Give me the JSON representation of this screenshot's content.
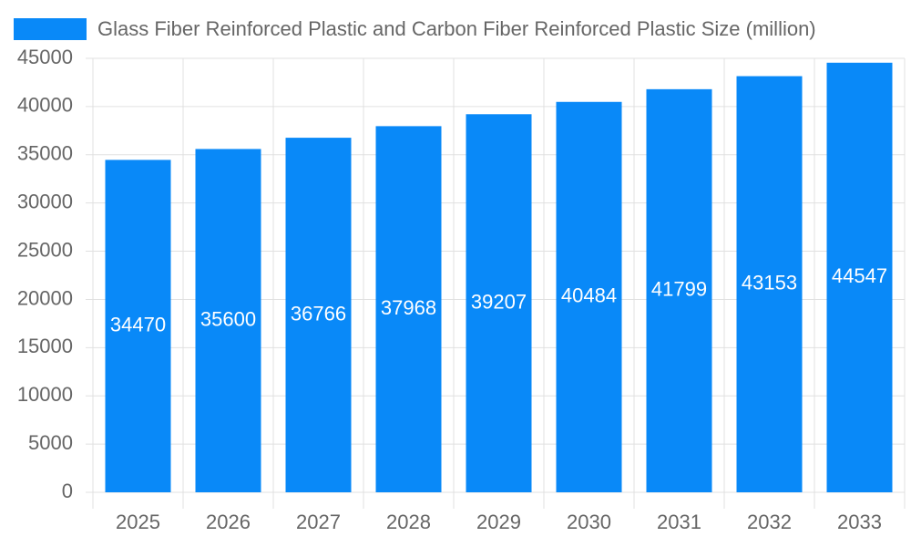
{
  "chart_data": {
    "type": "bar",
    "categories": [
      "2025",
      "2026",
      "2027",
      "2028",
      "2029",
      "2030",
      "2031",
      "2032",
      "2033"
    ],
    "series": [
      {
        "name": "Glass Fiber Reinforced Plastic and Carbon Fiber Reinforced Plastic Size (million)",
        "color": "#0989f8",
        "values": [
          34470,
          35600,
          36766,
          37968,
          39207,
          40484,
          41799,
          43153,
          44547
        ]
      }
    ],
    "ylim": [
      0,
      45000
    ],
    "yticks": [
      0,
      5000,
      10000,
      15000,
      20000,
      25000,
      30000,
      35000,
      40000,
      45000
    ],
    "grid": true,
    "legend": "top",
    "data_labels": true
  }
}
